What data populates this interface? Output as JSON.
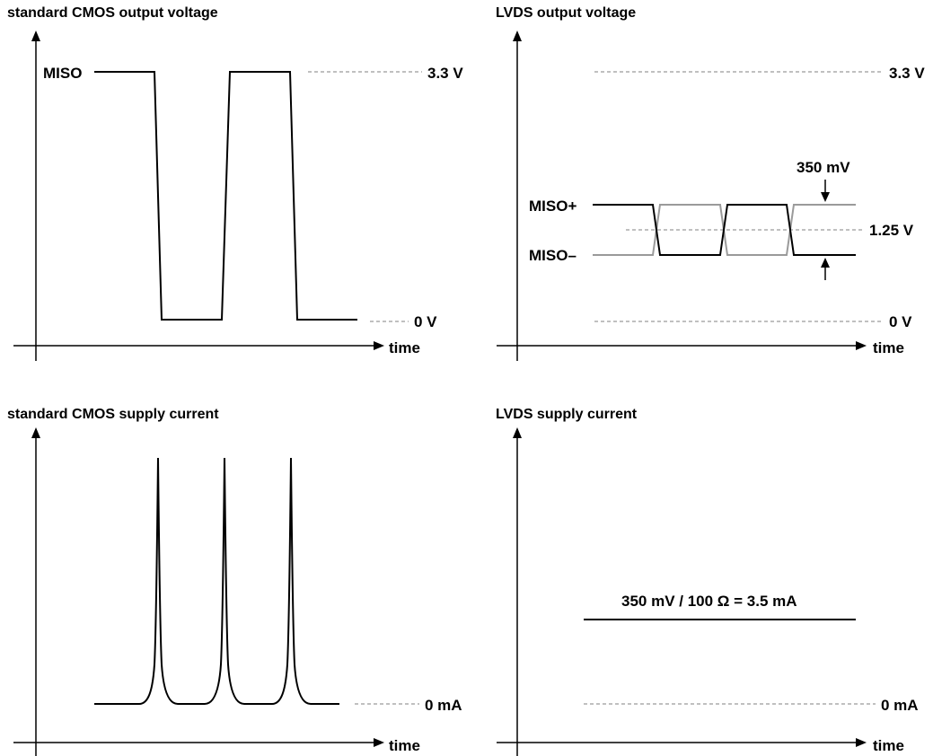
{
  "panels": {
    "cmos_voltage": {
      "title": "standard CMOS output voltage",
      "signal_label": "MISO",
      "high_level": "3.3 V",
      "low_level": "0 V",
      "x_label": "time"
    },
    "lvds_voltage": {
      "title": "LVDS output voltage",
      "signal_pos_label": "MISO+",
      "signal_neg_label": "MISO–",
      "high_level": "3.3 V",
      "common_mode_level": "1.25 V",
      "low_level": "0 V",
      "swing_label": "350 mV",
      "x_label": "time"
    },
    "cmos_current": {
      "title": "standard CMOS supply current",
      "zero_level": "0 mA",
      "x_label": "time"
    },
    "lvds_current": {
      "title": "LVDS supply current",
      "current_formula": "350 mV / 100 Ω = 3.5 mA",
      "zero_level": "0 mA",
      "x_label": "time"
    }
  },
  "colors": {
    "signal": "#000000",
    "complement_signal": "#9a9a9a",
    "reference_dash": "#9a9a9a",
    "background": "#ffffff"
  }
}
